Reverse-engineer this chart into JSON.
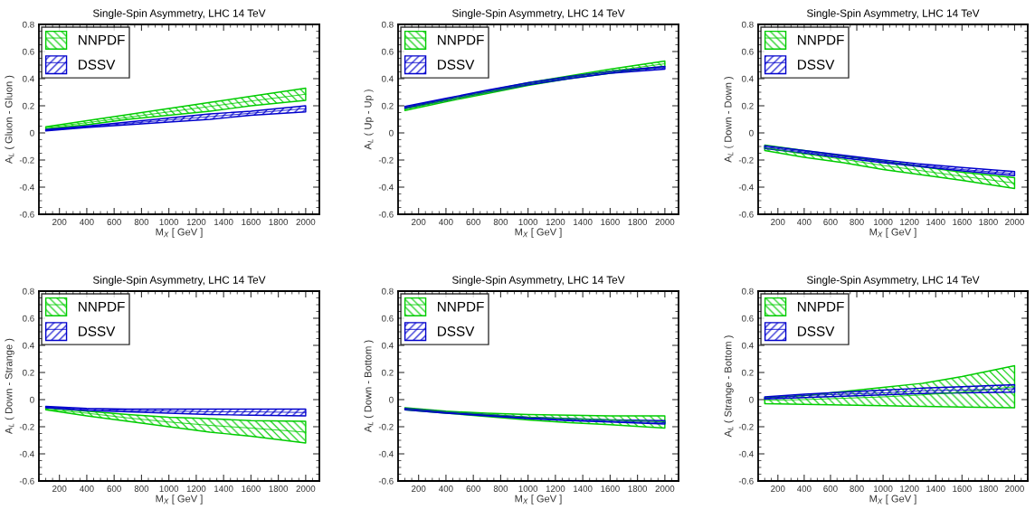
{
  "chart_data": [
    {
      "type": "line",
      "title": "Single-Spin Asymmetry, LHC 14 TeV",
      "xlabel": "M$_{X}$ [ GeV ]",
      "ylabel": "A$_{L}$ ( Gluon - Gluon )",
      "line_style": "solid",
      "x": [
        100,
        400,
        700,
        1000,
        1300,
        1600,
        2000
      ],
      "xlim": [
        50,
        2100
      ],
      "ylim": [
        -0.6,
        0.8
      ],
      "xticks": [
        200,
        400,
        600,
        800,
        1000,
        1200,
        1400,
        1600,
        1800,
        2000
      ],
      "yticks": [
        -0.6,
        -0.4,
        -0.2,
        0,
        0.2,
        0.4,
        0.6,
        0.8
      ],
      "legend": "top left",
      "grid": false,
      "series": [
        {
          "name": "NNPDF",
          "color": "#00cc00",
          "lower": [
            0.03,
            0.06,
            0.1,
            0.13,
            0.16,
            0.2,
            0.24
          ],
          "upper": [
            0.045,
            0.09,
            0.135,
            0.18,
            0.225,
            0.27,
            0.33
          ],
          "values": [
            0.04,
            0.075,
            0.115,
            0.155,
            0.195,
            0.235,
            0.285
          ]
        },
        {
          "name": "DSSV",
          "color": "#0000cc",
          "lower": [
            0.015,
            0.04,
            0.06,
            0.08,
            0.1,
            0.13,
            0.155
          ],
          "upper": [
            0.025,
            0.05,
            0.08,
            0.11,
            0.14,
            0.16,
            0.2
          ],
          "values": [
            0.02,
            0.045,
            0.07,
            0.095,
            0.12,
            0.145,
            0.18
          ]
        }
      ]
    },
    {
      "type": "line",
      "title": "Single-Spin Asymmetry, LHC 14 TeV",
      "xlabel": "M$_{X}$ [ GeV ]",
      "ylabel": "A$_{L}$ ( Up - Up )",
      "line_style": "solid",
      "x": [
        100,
        400,
        700,
        1000,
        1300,
        1600,
        2000
      ],
      "xlim": [
        50,
        2100
      ],
      "ylim": [
        -0.6,
        0.8
      ],
      "xticks": [
        200,
        400,
        600,
        800,
        1000,
        1200,
        1400,
        1600,
        1800,
        2000
      ],
      "yticks": [
        -0.6,
        -0.4,
        -0.2,
        0,
        0.2,
        0.4,
        0.6,
        0.8
      ],
      "legend": "top left",
      "grid": false,
      "series": [
        {
          "name": "NNPDF",
          "color": "#00cc00",
          "lower": [
            0.165,
            0.23,
            0.29,
            0.35,
            0.4,
            0.44,
            0.49
          ],
          "upper": [
            0.185,
            0.25,
            0.31,
            0.37,
            0.42,
            0.47,
            0.53
          ],
          "values": [
            0.175,
            0.24,
            0.3,
            0.36,
            0.41,
            0.455,
            0.51
          ]
        },
        {
          "name": "DSSV",
          "color": "#0000cc",
          "lower": [
            0.18,
            0.24,
            0.3,
            0.355,
            0.4,
            0.44,
            0.47
          ],
          "upper": [
            0.195,
            0.255,
            0.315,
            0.37,
            0.415,
            0.455,
            0.49
          ],
          "values": [
            0.19,
            0.25,
            0.31,
            0.36,
            0.41,
            0.45,
            0.48
          ]
        }
      ]
    },
    {
      "type": "line",
      "title": "Single-Spin Asymmetry, LHC 14 TeV",
      "xlabel": "M$_{X}$ [ GeV ]",
      "ylabel": "A$_{L}$ ( Down - Down )",
      "line_style": "solid",
      "x": [
        100,
        400,
        700,
        1000,
        1300,
        1600,
        2000
      ],
      "xlim": [
        50,
        2100
      ],
      "ylim": [
        -0.6,
        0.8
      ],
      "xticks": [
        200,
        400,
        600,
        800,
        1000,
        1200,
        1400,
        1600,
        1800,
        2000
      ],
      "yticks": [
        -0.6,
        -0.4,
        -0.2,
        0,
        0.2,
        0.4,
        0.6,
        0.8
      ],
      "legend": "top left",
      "grid": false,
      "series": [
        {
          "name": "NNPDF",
          "color": "#00cc00",
          "lower": [
            -0.13,
            -0.18,
            -0.22,
            -0.27,
            -0.31,
            -0.35,
            -0.41
          ],
          "upper": [
            -0.09,
            -0.13,
            -0.17,
            -0.21,
            -0.25,
            -0.29,
            -0.33
          ],
          "values": [
            -0.11,
            -0.155,
            -0.195,
            -0.24,
            -0.28,
            -0.32,
            -0.37
          ]
        },
        {
          "name": "DSSV",
          "color": "#0000cc",
          "lower": [
            -0.115,
            -0.15,
            -0.185,
            -0.22,
            -0.25,
            -0.28,
            -0.315
          ],
          "upper": [
            -0.095,
            -0.13,
            -0.165,
            -0.2,
            -0.23,
            -0.255,
            -0.285
          ],
          "values": [
            -0.105,
            -0.14,
            -0.175,
            -0.21,
            -0.24,
            -0.27,
            -0.3
          ]
        }
      ]
    },
    {
      "type": "line",
      "title": "Single-Spin Asymmetry, LHC 14 TeV",
      "xlabel": "M$_{X}$ [ GeV ]",
      "ylabel": "A$_{L}$ ( Down - Strange )",
      "line_style": "solid",
      "x": [
        100,
        400,
        700,
        1000,
        1300,
        1600,
        2000
      ],
      "xlim": [
        50,
        2100
      ],
      "ylim": [
        -0.6,
        0.8
      ],
      "xticks": [
        200,
        400,
        600,
        800,
        1000,
        1200,
        1400,
        1600,
        1800,
        2000
      ],
      "yticks": [
        -0.6,
        -0.4,
        -0.2,
        0,
        0.2,
        0.4,
        0.6,
        0.8
      ],
      "legend": "top left",
      "grid": false,
      "series": [
        {
          "name": "NNPDF",
          "color": "#00cc00",
          "lower": [
            -0.075,
            -0.12,
            -0.16,
            -0.2,
            -0.24,
            -0.27,
            -0.32
          ],
          "upper": [
            -0.06,
            -0.085,
            -0.11,
            -0.13,
            -0.14,
            -0.155,
            -0.16
          ],
          "values": [
            -0.07,
            -0.1,
            -0.135,
            -0.165,
            -0.19,
            -0.21,
            -0.24
          ]
        },
        {
          "name": "DSSV",
          "color": "#0000cc",
          "lower": [
            -0.06,
            -0.08,
            -0.09,
            -0.1,
            -0.11,
            -0.115,
            -0.12
          ],
          "upper": [
            -0.05,
            -0.065,
            -0.07,
            -0.07,
            -0.07,
            -0.07,
            -0.07
          ],
          "values": [
            -0.055,
            -0.07,
            -0.08,
            -0.085,
            -0.09,
            -0.09,
            -0.095
          ]
        }
      ]
    },
    {
      "type": "line",
      "title": "Single-Spin Asymmetry, LHC 14 TeV",
      "xlabel": "M$_{X}$ [ GeV ]",
      "ylabel": "A$_{L}$ ( Down - Bottom )",
      "line_style": "solid",
      "x": [
        100,
        400,
        700,
        1000,
        1300,
        1600,
        2000
      ],
      "xlim": [
        50,
        2100
      ],
      "ylim": [
        -0.6,
        0.8
      ],
      "xticks": [
        200,
        400,
        600,
        800,
        1000,
        1200,
        1400,
        1600,
        1800,
        2000
      ],
      "yticks": [
        -0.6,
        -0.4,
        -0.2,
        0,
        0.2,
        0.4,
        0.6,
        0.8
      ],
      "legend": "top left",
      "grid": false,
      "series": [
        {
          "name": "NNPDF",
          "color": "#00cc00",
          "lower": [
            -0.075,
            -0.1,
            -0.125,
            -0.15,
            -0.17,
            -0.185,
            -0.21
          ],
          "upper": [
            -0.06,
            -0.085,
            -0.1,
            -0.11,
            -0.115,
            -0.12,
            -0.12
          ],
          "values": [
            -0.07,
            -0.09,
            -0.11,
            -0.13,
            -0.14,
            -0.15,
            -0.165
          ]
        },
        {
          "name": "DSSV",
          "color": "#0000cc",
          "lower": [
            -0.075,
            -0.1,
            -0.12,
            -0.14,
            -0.155,
            -0.165,
            -0.18
          ],
          "upper": [
            -0.065,
            -0.09,
            -0.11,
            -0.13,
            -0.14,
            -0.15,
            -0.155
          ],
          "values": [
            -0.07,
            -0.095,
            -0.115,
            -0.135,
            -0.15,
            -0.16,
            -0.17
          ]
        }
      ]
    },
    {
      "type": "line",
      "title": "Single-Spin Asymmetry, LHC 14 TeV",
      "xlabel": "M$_{X}$ [ GeV ]",
      "ylabel": "A$_{L}$ ( Strange - Bottom )",
      "line_style": "solid",
      "x": [
        100,
        400,
        700,
        1000,
        1300,
        1600,
        2000
      ],
      "xlim": [
        50,
        2100
      ],
      "ylim": [
        -0.6,
        0.8
      ],
      "xticks": [
        200,
        400,
        600,
        800,
        1000,
        1200,
        1400,
        1600,
        1800,
        2000
      ],
      "yticks": [
        -0.6,
        -0.4,
        -0.2,
        0,
        0.2,
        0.4,
        0.6,
        0.8
      ],
      "legend": "top left",
      "grid": false,
      "series": [
        {
          "name": "NNPDF",
          "color": "#00cc00",
          "lower": [
            -0.03,
            -0.035,
            -0.04,
            -0.045,
            -0.05,
            -0.055,
            -0.06
          ],
          "upper": [
            0.015,
            0.03,
            0.06,
            0.09,
            0.12,
            0.17,
            0.25
          ],
          "values": [
            -0.005,
            0.0,
            0.01,
            0.02,
            0.035,
            0.055,
            0.095
          ]
        },
        {
          "name": "DSSV",
          "color": "#0000cc",
          "lower": [
            0.005,
            0.015,
            0.025,
            0.035,
            0.045,
            0.05,
            0.055
          ],
          "upper": [
            0.02,
            0.04,
            0.055,
            0.07,
            0.085,
            0.095,
            0.11
          ],
          "values": [
            0.01,
            0.03,
            0.04,
            0.05,
            0.065,
            0.07,
            0.08
          ]
        }
      ]
    }
  ]
}
